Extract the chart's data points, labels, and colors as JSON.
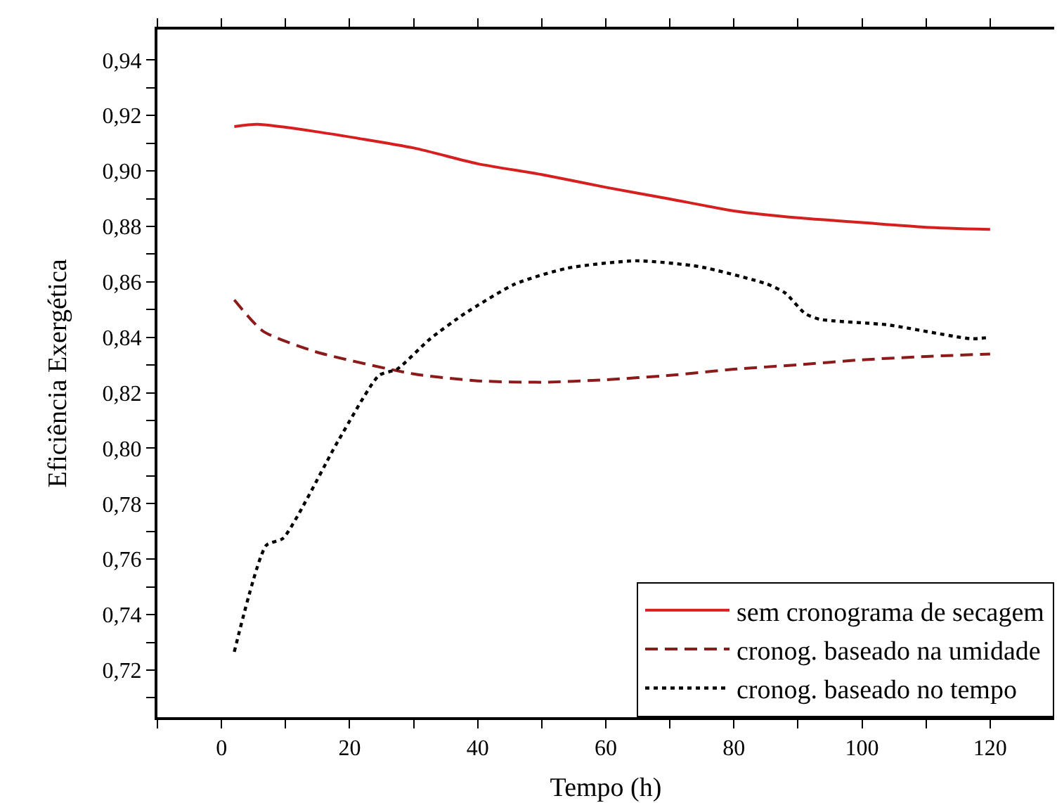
{
  "chart_data": {
    "type": "line",
    "xlabel": "Tempo (h)",
    "ylabel": "Eficiência Exergética",
    "xlim": [
      -10,
      130
    ],
    "ylim": [
      0.703,
      0.951
    ],
    "xticks": [
      {
        "value": -10,
        "label": null
      },
      {
        "value": 0,
        "label": "0"
      },
      {
        "value": 10,
        "label": null
      },
      {
        "value": 20,
        "label": "20"
      },
      {
        "value": 30,
        "label": null
      },
      {
        "value": 40,
        "label": "40"
      },
      {
        "value": 50,
        "label": null
      },
      {
        "value": 60,
        "label": "60"
      },
      {
        "value": 70,
        "label": null
      },
      {
        "value": 80,
        "label": "80"
      },
      {
        "value": 90,
        "label": null
      },
      {
        "value": 100,
        "label": "100"
      },
      {
        "value": 110,
        "label": null
      },
      {
        "value": 120,
        "label": "120"
      }
    ],
    "yticks": [
      {
        "value": 0.71,
        "label": null
      },
      {
        "value": 0.72,
        "label": "0,72"
      },
      {
        "value": 0.73,
        "label": null
      },
      {
        "value": 0.74,
        "label": "0,74"
      },
      {
        "value": 0.75,
        "label": null
      },
      {
        "value": 0.76,
        "label": "0,76"
      },
      {
        "value": 0.77,
        "label": null
      },
      {
        "value": 0.78,
        "label": "0,78"
      },
      {
        "value": 0.79,
        "label": null
      },
      {
        "value": 0.8,
        "label": "0,80"
      },
      {
        "value": 0.81,
        "label": null
      },
      {
        "value": 0.82,
        "label": "0,82"
      },
      {
        "value": 0.83,
        "label": null
      },
      {
        "value": 0.84,
        "label": "0,84"
      },
      {
        "value": 0.85,
        "label": null
      },
      {
        "value": 0.86,
        "label": "0,86"
      },
      {
        "value": 0.87,
        "label": null
      },
      {
        "value": 0.88,
        "label": "0,88"
      },
      {
        "value": 0.89,
        "label": null
      },
      {
        "value": 0.9,
        "label": "0,90"
      },
      {
        "value": 0.91,
        "label": null
      },
      {
        "value": 0.92,
        "label": "0,92"
      },
      {
        "value": 0.93,
        "label": null
      },
      {
        "value": 0.94,
        "label": "0,94"
      }
    ],
    "grid": false,
    "legend": "bottom right",
    "marker": "none",
    "series": [
      {
        "name": "sem cronograma de secagem",
        "color": "#d62020",
        "line_style": "solid",
        "x": [
          2,
          5.6,
          14.7,
          30,
          40,
          50,
          60,
          70,
          80,
          90,
          100,
          110,
          120
        ],
        "values": [
          0.916,
          0.9168,
          0.9142,
          0.9083,
          0.9026,
          0.8987,
          0.8941,
          0.8899,
          0.8856,
          0.8831,
          0.8814,
          0.8797,
          0.8789
        ]
      },
      {
        "name": "cronog. baseado na umidade",
        "color": "#8b1a1a",
        "line_style": "dashed",
        "x": [
          2,
          6.5,
          14.7,
          30,
          40,
          50,
          60,
          70,
          80,
          90,
          100,
          110,
          120
        ],
        "values": [
          0.8535,
          0.8422,
          0.8348,
          0.8268,
          0.8243,
          0.8238,
          0.8247,
          0.8263,
          0.8285,
          0.8301,
          0.8319,
          0.8331,
          0.834
        ]
      },
      {
        "name": "cronog. baseado no tempo",
        "color": "#000000",
        "line_style": "dotted",
        "x": [
          2,
          7,
          9.6,
          18.3,
          24.6,
          27.4,
          32.6,
          38,
          45.8,
          53.9,
          64.7,
          74.6,
          85.2,
          88,
          91.1,
          93.4,
          104,
          117,
          120
        ],
        "values": [
          0.7266,
          0.765,
          0.7675,
          0.803,
          0.8263,
          0.8285,
          0.8395,
          0.8486,
          0.8592,
          0.8649,
          0.8676,
          0.8655,
          0.8592,
          0.856,
          0.8486,
          0.8465,
          0.8445,
          0.8395,
          0.84
        ]
      }
    ]
  }
}
